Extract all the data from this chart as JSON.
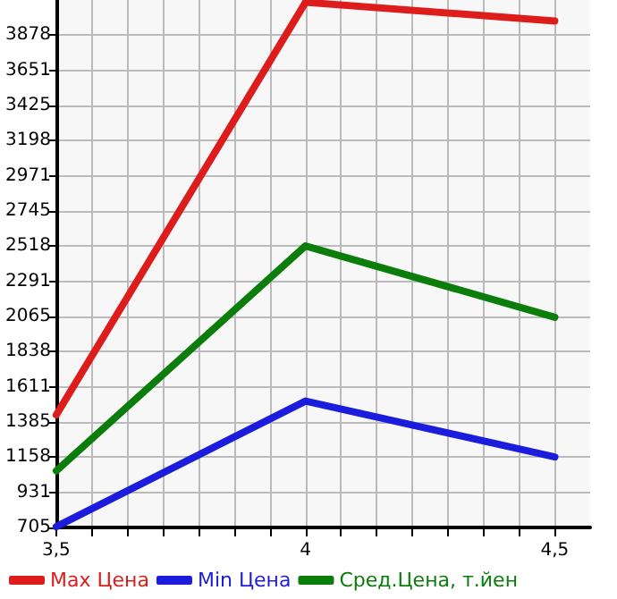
{
  "chart_data": {
    "type": "line",
    "x": [
      3.5,
      4,
      4.5
    ],
    "series": [
      {
        "name": "Max Цена",
        "color": "#dd1c1c",
        "values": [
          1430,
          4090,
          3970
        ]
      },
      {
        "name": "Min Цена",
        "color": "#1c1cdd",
        "values": [
          710,
          1520,
          1160
        ]
      },
      {
        "name": "Сред.Цена, т.йен",
        "color": "#0a7d0a",
        "values": [
          1070,
          2520,
          2060
        ]
      }
    ],
    "xlim": [
      3.5,
      4.571
    ],
    "xticks": [
      {
        "value": 3.5,
        "label": "3,5"
      },
      {
        "value": 3.571,
        "label": null
      },
      {
        "value": 3.643,
        "label": null
      },
      {
        "value": 3.714,
        "label": null
      },
      {
        "value": 3.786,
        "label": null
      },
      {
        "value": 3.857,
        "label": null
      },
      {
        "value": 3.929,
        "label": null
      },
      {
        "value": 4,
        "label": "4"
      },
      {
        "value": 4.071,
        "label": null
      },
      {
        "value": 4.143,
        "label": null
      },
      {
        "value": 4.214,
        "label": null
      },
      {
        "value": 4.286,
        "label": null
      },
      {
        "value": 4.357,
        "label": null
      },
      {
        "value": 4.429,
        "label": null
      },
      {
        "value": 4.5,
        "label": "4,5"
      }
    ],
    "ylim": [
      705,
      4105
    ],
    "yticks": [
      705,
      931,
      1158,
      1385,
      1611,
      1838,
      2065,
      2291,
      2518,
      2745,
      2971,
      3198,
      3425,
      3651,
      3878
    ],
    "grid": true,
    "legend": "bottom",
    "marker": "none",
    "line_style": "solid"
  }
}
